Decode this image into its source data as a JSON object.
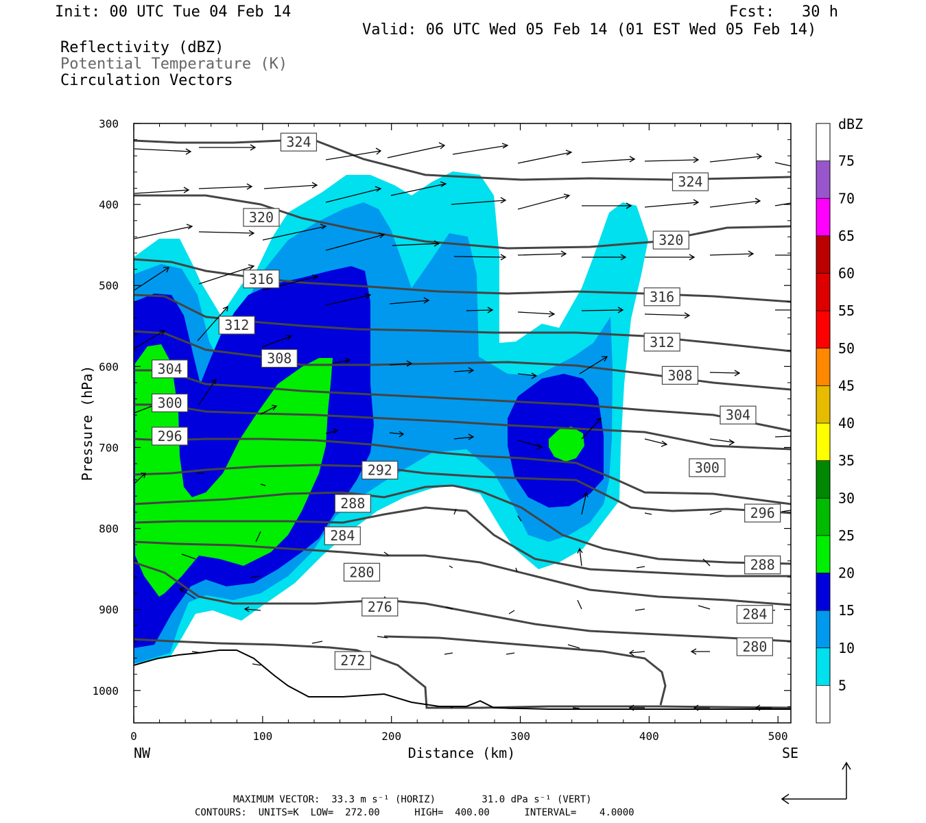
{
  "header": {
    "init": "Init: 00 UTC Tue 04 Feb 14",
    "fcst": "Fcst:   30 h",
    "valid": "Valid: 06 UTC Wed 05 Feb 14 (01 EST Wed 05 Feb 14)",
    "field1": "Reflectivity (dBZ)",
    "field2": "Potential Temperature (K)",
    "field3": "Circulation Vectors"
  },
  "footer": {
    "line1": "MAXIMUM VECTOR:  33.3 m s⁻¹ (HORIZ)        31.0 dPa s⁻¹ (VERT)",
    "line2": "CONTOURS:  UNITS=K  LOW=  272.00      HIGH=  400.00      INTERVAL=    4.0000"
  },
  "chart_data": {
    "type": "contour",
    "xlabel": "Distance (km)",
    "ylabel": "Pressure (hPa)",
    "xlim": [
      0,
      510
    ],
    "ylim": [
      300,
      1040
    ],
    "y_inverted": true,
    "x_ticks": [
      0,
      100,
      200,
      300,
      400,
      500
    ],
    "y_ticks": [
      300,
      400,
      500,
      600,
      700,
      800,
      900,
      1000
    ],
    "x_endpoints": {
      "left": "NW",
      "right": "SE"
    },
    "colorbar": {
      "title": "dBZ",
      "levels": [
        5,
        10,
        15,
        20,
        25,
        30,
        35,
        40,
        45,
        50,
        55,
        60,
        65,
        70,
        75
      ],
      "colors": [
        "#ffffff",
        "#00e0ee",
        "#0099ee",
        "#0000dd",
        "#00ee00",
        "#00bb00",
        "#008800",
        "#ffff00",
        "#e6bb00",
        "#ff8800",
        "#ff0000",
        "#dd0000",
        "#bb0000",
        "#ff00ff",
        "#9955cc",
        "#ffffff"
      ]
    },
    "theta_contours": {
      "color": "#444444",
      "units": "K",
      "labels": [
        {
          "value": "324",
          "x": 128,
          "p": 323
        },
        {
          "value": "324",
          "x": 432,
          "p": 372
        },
        {
          "value": "320",
          "x": 99,
          "p": 416
        },
        {
          "value": "320",
          "x": 417,
          "p": 444
        },
        {
          "value": "316",
          "x": 99,
          "p": 492
        },
        {
          "value": "316",
          "x": 410,
          "p": 514
        },
        {
          "value": "312",
          "x": 80,
          "p": 549
        },
        {
          "value": "312",
          "x": 410,
          "p": 570
        },
        {
          "value": "308",
          "x": 113,
          "p": 590
        },
        {
          "value": "308",
          "x": 424,
          "p": 611
        },
        {
          "value": "304",
          "x": 28,
          "p": 603
        },
        {
          "value": "304",
          "x": 469,
          "p": 660
        },
        {
          "value": "300",
          "x": 28,
          "p": 645
        },
        {
          "value": "300",
          "x": 445,
          "p": 725
        },
        {
          "value": "296",
          "x": 28,
          "p": 686
        },
        {
          "value": "296",
          "x": 488,
          "p": 781
        },
        {
          "value": "292",
          "x": 191,
          "p": 728
        },
        {
          "value": "288",
          "x": 170,
          "p": 769
        },
        {
          "value": "288",
          "x": 488,
          "p": 845
        },
        {
          "value": "284",
          "x": 162,
          "p": 809
        },
        {
          "value": "284",
          "x": 482,
          "p": 906
        },
        {
          "value": "280",
          "x": 177,
          "p": 854
        },
        {
          "value": "280",
          "x": 482,
          "p": 946
        },
        {
          "value": "276",
          "x": 191,
          "p": 897
        },
        {
          "value": "272",
          "x": 170,
          "p": 963
        }
      ]
    },
    "reflectivity_regions": [
      {
        "dbz": 5,
        "description": "broad region from western edge up to ~360 hPa, centered 0-390 km"
      },
      {
        "dbz": 10,
        "description": "broad region 0-380 km, 420-850 hPa"
      },
      {
        "dbz": 15,
        "description": "west band 0-185 km and eastern cell near 300-370 km, 610-740 hPa"
      },
      {
        "dbz": 20,
        "description": "west band 20-155 km, 580-880 hPa; small cell near 330-345 km, 690 hPa"
      }
    ],
    "max_vector": {
      "horiz": "33.3 m s-1",
      "vert": "31.0 dPa s-1"
    },
    "contour_stats": {
      "low": 272.0,
      "high": 400.0,
      "interval": 4.0
    }
  }
}
